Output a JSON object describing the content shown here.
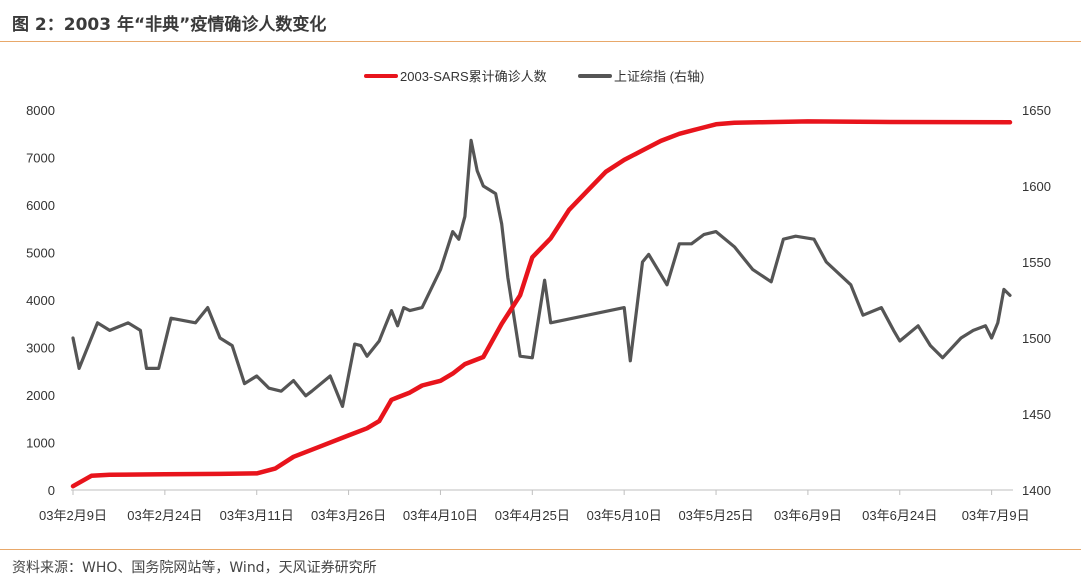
{
  "header": {
    "title": "图 2：2003 年“非典”疫情确诊人数变化"
  },
  "footer": {
    "source": "资料来源：WHO、国务院网站等，Wind，天风证券研究所"
  },
  "chart_data": {
    "type": "line",
    "title": "",
    "x_tick_labels": [
      "03年2月9日",
      "03年2月24日",
      "03年3月11日",
      "03年3月26日",
      "03年4月10日",
      "03年4月25日",
      "03年5月10日",
      "03年5月25日",
      "03年6月9日",
      "03年6月24日",
      "03年7月9日"
    ],
    "x_range": [
      "2003-02-09",
      "2003-07-12"
    ],
    "legend_position": "top-center",
    "grid": false,
    "y_left": {
      "ticks": [
        "0",
        "1000",
        "2000",
        "3000",
        "4000",
        "5000",
        "6000",
        "7000",
        "8000"
      ],
      "range": [
        0,
        8000
      ]
    },
    "y_right": {
      "ticks": [
        "1400",
        "1450",
        "1500",
        "1550",
        "1600",
        "1650"
      ],
      "range": [
        1400,
        1650
      ]
    },
    "colors": {
      "sars": "#e8141c",
      "index": "#555555"
    },
    "series": [
      {
        "name": "2003-SARS累计确诊人数",
        "axis": "left",
        "x": [
          "2003-02-09",
          "2003-02-12",
          "2003-02-15",
          "2003-02-24",
          "2003-03-05",
          "2003-03-11",
          "2003-03-14",
          "2003-03-17",
          "2003-03-21",
          "2003-03-26",
          "2003-03-29",
          "2003-03-31",
          "2003-04-02",
          "2003-04-03",
          "2003-04-05",
          "2003-04-07",
          "2003-04-10",
          "2003-04-12",
          "2003-04-14",
          "2003-04-17",
          "2003-04-20",
          "2003-04-23",
          "2003-04-25",
          "2003-04-28",
          "2003-05-01",
          "2003-05-04",
          "2003-05-07",
          "2003-05-10",
          "2003-05-13",
          "2003-05-16",
          "2003-05-19",
          "2003-05-22",
          "2003-05-25",
          "2003-05-28",
          "2003-06-01",
          "2003-06-09",
          "2003-06-20",
          "2003-07-12"
        ],
        "values": [
          80,
          300,
          320,
          330,
          340,
          350,
          450,
          700,
          900,
          1150,
          1300,
          1450,
          1900,
          1950,
          2050,
          2200,
          2300,
          2450,
          2650,
          2800,
          3500,
          4100,
          4900,
          5300,
          5900,
          6300,
          6700,
          6950,
          7150,
          7350,
          7500,
          7600,
          7700,
          7730,
          7740,
          7760,
          7750,
          7740
        ]
      },
      {
        "name": "上证综指 (右轴)",
        "axis": "right",
        "x": [
          "2003-02-09",
          "2003-02-10",
          "2003-02-13",
          "2003-02-15",
          "2003-02-18",
          "2003-02-20",
          "2003-02-21",
          "2003-02-23",
          "2003-02-25",
          "2003-03-01",
          "2003-03-03",
          "2003-03-05",
          "2003-03-07",
          "2003-03-09",
          "2003-03-11",
          "2003-03-13",
          "2003-03-15",
          "2003-03-17",
          "2003-03-19",
          "2003-03-20",
          "2003-03-23",
          "2003-03-25",
          "2003-03-27",
          "2003-03-28",
          "2003-03-29",
          "2003-03-31",
          "2003-04-01",
          "2003-04-02",
          "2003-04-03",
          "2003-04-04",
          "2003-04-05",
          "2003-04-07",
          "2003-04-10",
          "2003-04-12",
          "2003-04-13",
          "2003-04-14",
          "2003-04-15",
          "2003-04-16",
          "2003-04-17",
          "2003-04-19",
          "2003-04-20",
          "2003-04-21",
          "2003-04-23",
          "2003-04-25",
          "2003-04-27",
          "2003-04-28",
          "2003-05-10",
          "2003-05-11",
          "2003-05-13",
          "2003-05-14",
          "2003-05-17",
          "2003-05-19",
          "2003-05-21",
          "2003-05-23",
          "2003-05-25",
          "2003-05-28",
          "2003-05-31",
          "2003-06-03",
          "2003-06-05",
          "2003-06-07",
          "2003-06-10",
          "2003-06-12",
          "2003-06-16",
          "2003-06-18",
          "2003-06-21",
          "2003-06-23",
          "2003-06-24",
          "2003-06-27",
          "2003-06-29",
          "2003-07-01",
          "2003-07-04",
          "2003-07-06",
          "2003-07-08",
          "2003-07-09",
          "2003-07-10",
          "2003-07-11",
          "2003-07-12"
        ],
        "values": [
          1500,
          1480,
          1510,
          1505,
          1510,
          1505,
          1480,
          1480,
          1513,
          1510,
          1520,
          1500,
          1495,
          1470,
          1475,
          1467,
          1465,
          1472,
          1462,
          1465,
          1475,
          1455,
          1496,
          1495,
          1488,
          1498,
          1508,
          1518,
          1508,
          1520,
          1518,
          1520,
          1545,
          1570,
          1565,
          1580,
          1630,
          1610,
          1600,
          1595,
          1575,
          1540,
          1488,
          1487,
          1538,
          1510,
          1520,
          1485,
          1550,
          1555,
          1535,
          1562,
          1562,
          1568,
          1570,
          1560,
          1545,
          1537,
          1565,
          1567,
          1565,
          1550,
          1535,
          1515,
          1520,
          1505,
          1498,
          1508,
          1495,
          1487,
          1500,
          1505,
          1508,
          1500,
          1510,
          1532,
          1528
        ]
      }
    ]
  }
}
